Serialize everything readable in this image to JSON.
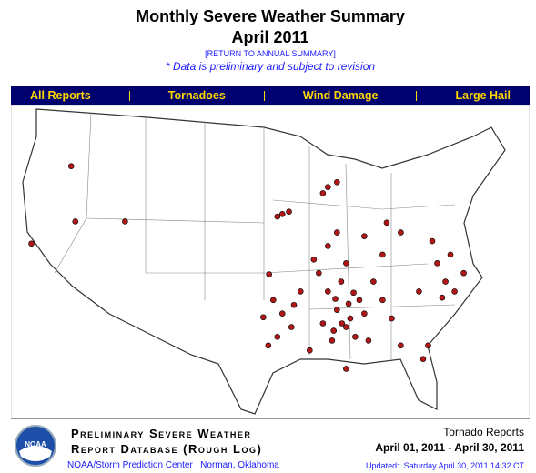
{
  "header": {
    "title": "Monthly Severe Weather Summary",
    "subtitle": "April 2011",
    "link": "[RETURN TO ANNUAL SUMMARY]",
    "note": "* Data is preliminary and subject to revision"
  },
  "nav": [
    "All Reports",
    "Tornadoes",
    "Wind Damage",
    "Large Hail"
  ],
  "map": {
    "marker_color": "#b01818",
    "reports": [
      [
        -88.3,
        43.6
      ],
      [
        -86.6,
        44.5
      ],
      [
        -87.7,
        44.1
      ],
      [
        -93.2,
        41.9
      ],
      [
        -92.4,
        42.1
      ],
      [
        -93.8,
        41.7
      ],
      [
        -118.7,
        45.8
      ],
      [
        -123.5,
        39.5
      ],
      [
        -118.2,
        41.3
      ],
      [
        -112.2,
        41.3
      ],
      [
        -94.3,
        34.9
      ],
      [
        -94.8,
        37.0
      ],
      [
        -93.2,
        33.8
      ],
      [
        -94.9,
        31.2
      ],
      [
        -91.0,
        35.6
      ],
      [
        -92.1,
        32.7
      ],
      [
        -93.8,
        31.9
      ],
      [
        -89.9,
        30.8
      ],
      [
        -95.5,
        33.5
      ],
      [
        -91.8,
        34.5
      ],
      [
        -86.6,
        34.1
      ],
      [
        -85.0,
        33.4
      ],
      [
        -83.9,
        34.9
      ],
      [
        -85.5,
        32.7
      ],
      [
        -83.3,
        33.8
      ],
      [
        -82.2,
        36.4
      ],
      [
        -86.1,
        36.4
      ],
      [
        -87.7,
        35.6
      ],
      [
        -84.4,
        31.9
      ],
      [
        -81.1,
        34.9
      ],
      [
        -80.0,
        33.4
      ],
      [
        -82.8,
        31.6
      ],
      [
        -87.2,
        31.6
      ],
      [
        -88.3,
        33.0
      ],
      [
        -88.8,
        37.1
      ],
      [
        -86.0,
        33.0
      ],
      [
        -85.2,
        34.6
      ],
      [
        -87.0,
        32.4
      ],
      [
        -84.6,
        35.5
      ],
      [
        -86.8,
        35.0
      ],
      [
        -73.5,
        36.4
      ],
      [
        -74.5,
        37.9
      ],
      [
        -72.4,
        35.6
      ],
      [
        -75.1,
        39.7
      ],
      [
        -76.7,
        35.6
      ],
      [
        -71.3,
        37.1
      ],
      [
        -72.9,
        38.6
      ],
      [
        -73.9,
        35.1
      ],
      [
        -83.3,
        40.1
      ],
      [
        -81.1,
        38.6
      ],
      [
        -78.9,
        40.4
      ],
      [
        -85.5,
        37.9
      ],
      [
        -80.6,
        41.2
      ],
      [
        -75.6,
        31.2
      ],
      [
        -76.2,
        30.1
      ],
      [
        -85.5,
        29.3
      ],
      [
        -78.9,
        31.2
      ],
      [
        -87.7,
        39.3
      ],
      [
        -89.4,
        38.2
      ],
      [
        -86.6,
        40.4
      ]
    ]
  },
  "footer": {
    "logo": "NOAA",
    "line1": "Preliminary Severe Weather",
    "line2": "Report Database (Rough Log)",
    "org": "NOAA/Storm Prediction Center   Norman, Oklahoma",
    "report_type": "Tornado Reports",
    "date_range": "April 01, 2011 - April 30, 2011",
    "updated": "Updated:  Saturday April 30, 2011 14:32 CT"
  }
}
